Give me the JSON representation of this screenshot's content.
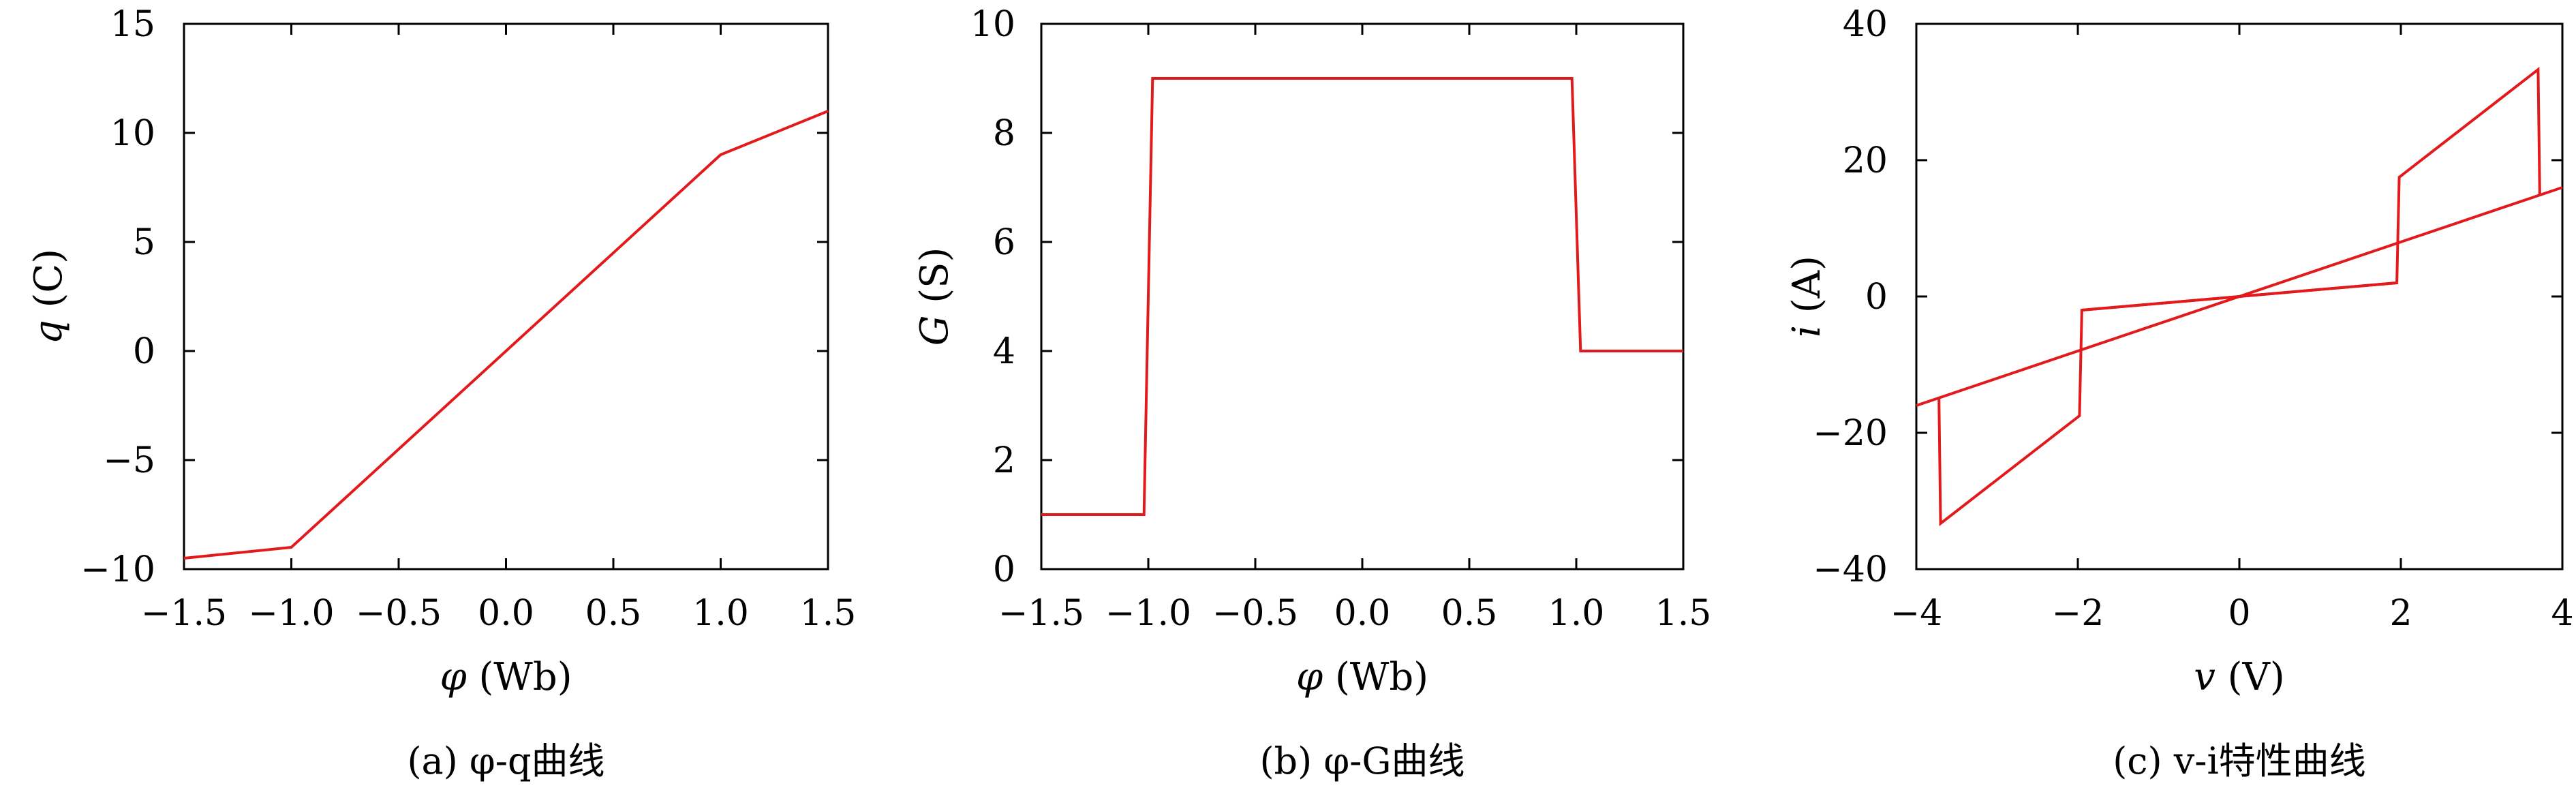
{
  "line_color": "#e31a1c",
  "chart_data": [
    {
      "type": "line",
      "caption": "(a) φ-q曲线",
      "xlabel": "φ (Wb)",
      "ylabel": "q (C)",
      "xlim": [
        -1.5,
        1.5
      ],
      "ylim": [
        -10,
        15
      ],
      "xticks": [
        -1.5,
        -1.0,
        -0.5,
        0.0,
        0.5,
        1.0,
        1.5
      ],
      "xtick_labels": [
        "−1.5",
        "−1.0",
        "−0.5",
        "0.0",
        "0.5",
        "1.0",
        "1.5"
      ],
      "yticks": [
        -10,
        -5,
        0,
        5,
        10,
        15
      ],
      "ytick_labels": [
        "−10",
        "−5",
        "0",
        "5",
        "10",
        "15"
      ],
      "grid": false,
      "series": [
        {
          "x": [
            -1.5,
            -1.0,
            1.0,
            1.5
          ],
          "y": [
            -9.5,
            -9.0,
            9.0,
            11.0
          ]
        }
      ]
    },
    {
      "type": "line",
      "caption": "(b) φ-G曲线",
      "xlabel": "φ (Wb)",
      "ylabel": "G (S)",
      "xlim": [
        -1.5,
        1.5
      ],
      "ylim": [
        0,
        10
      ],
      "xticks": [
        -1.5,
        -1.0,
        -0.5,
        0.0,
        0.5,
        1.0,
        1.5
      ],
      "xtick_labels": [
        "−1.5",
        "−1.0",
        "−0.5",
        "0.0",
        "0.5",
        "1.0",
        "1.5"
      ],
      "yticks": [
        0,
        2,
        4,
        6,
        8,
        10
      ],
      "ytick_labels": [
        "0",
        "2",
        "4",
        "6",
        "8",
        "10"
      ],
      "grid": false,
      "series": [
        {
          "x": [
            -1.5,
            -1.02,
            -0.98,
            0.98,
            1.02,
            1.5
          ],
          "y": [
            1,
            1,
            9,
            9,
            4,
            4
          ]
        }
      ]
    },
    {
      "type": "line",
      "caption": "(c) v-i特性曲线",
      "xlabel": "v (V)",
      "ylabel": "i (A)",
      "xlim": [
        -4,
        4
      ],
      "ylim": [
        -40,
        40
      ],
      "xticks": [
        -4,
        -2,
        0,
        2,
        4
      ],
      "xtick_labels": [
        "−4",
        "−2",
        "0",
        "2",
        "4"
      ],
      "yticks": [
        -40,
        -20,
        0,
        20,
        40
      ],
      "ytick_labels": [
        "−40",
        "−20",
        "0",
        "20",
        "40"
      ],
      "grid": false,
      "series": [
        {
          "x": [
            -4.0,
            4.0
          ],
          "y": [
            -16,
            16
          ]
        },
        {
          "x": [
            -1.95,
            0.0,
            1.95,
            1.98,
            3.7,
            3.72
          ],
          "y": [
            -2,
            0,
            2,
            17.5,
            33.3,
            15
          ]
        },
        {
          "x": [
            1.95,
            0.0,
            -1.95,
            -1.98,
            -3.7,
            -3.72
          ],
          "y": [
            2,
            0,
            -2,
            -17.5,
            -33.3,
            -15
          ]
        }
      ]
    }
  ]
}
